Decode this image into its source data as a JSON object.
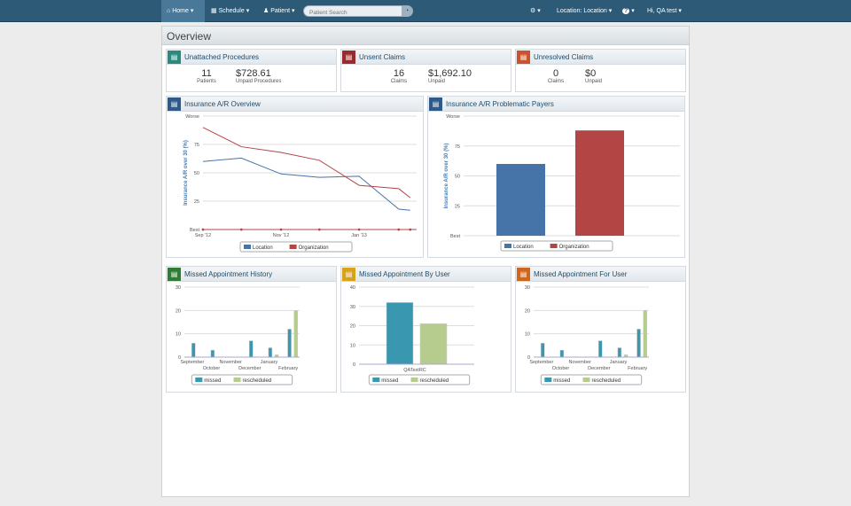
{
  "nav": {
    "home": "Home",
    "schedule": "Schedule",
    "patient": "Patient",
    "search_placeholder": "Patient Search",
    "settings": "⚙",
    "location": "Location: Location",
    "help": "?",
    "user": "Hi,  QA test"
  },
  "page": {
    "title": "Overview"
  },
  "summary": [
    {
      "title": "Unattached Procedures",
      "color": "#2a8a80",
      "stats": [
        {
          "value": "11",
          "label": "Patients"
        },
        {
          "value": "$728.61",
          "label": "Unpaid Procedures"
        }
      ]
    },
    {
      "title": "Unsent Claims",
      "color": "#9b2a2a",
      "stats": [
        {
          "value": "16",
          "label": "Claims"
        },
        {
          "value": "$1,692.10",
          "label": "Unpaid"
        }
      ]
    },
    {
      "title": "Unresolved Claims",
      "color": "#c9532d",
      "stats": [
        {
          "value": "0",
          "label": "Claims"
        },
        {
          "value": "$0",
          "label": "Unpaid"
        }
      ]
    }
  ],
  "colors": {
    "location": "#4673a8",
    "organization": "#b34545",
    "missed": "#3a97b0",
    "rescheduled": "#b5cc8e"
  },
  "chart_data": [
    {
      "type": "line",
      "title": "Insurance A/R Overview",
      "ylabel": "Insurance A/R over 30 (%)",
      "ylim": [
        0,
        100
      ],
      "yticks": [
        "Best",
        "25",
        "50",
        "75",
        "Worse"
      ],
      "x": [
        "2012-09-01",
        "2012-10-01",
        "2012-11-01",
        "2012-12-01",
        "2013-01-01",
        "2013-02-01",
        "2013-02-10"
      ],
      "xticks": [
        {
          "x": "2012-09-01",
          "label": "Sep '12"
        },
        {
          "x": "2012-11-01",
          "label": "Nov '12"
        },
        {
          "x": "2013-01-01",
          "label": "Jan '13"
        }
      ],
      "series": [
        {
          "name": "Location",
          "values": [
            60,
            63,
            49,
            46,
            47,
            18,
            17
          ]
        },
        {
          "name": "Organization",
          "values": [
            90,
            73,
            68,
            61,
            39,
            36,
            28
          ]
        }
      ],
      "legend": "bottom"
    },
    {
      "type": "bar",
      "title": "Insurance A/R Problematic Payers",
      "ylabel": "Insurance A/R over 30 (%)",
      "ylim": [
        0,
        100
      ],
      "yticks": [
        "Best",
        "25",
        "50",
        "75",
        "Worse"
      ],
      "categories": [
        ""
      ],
      "series": [
        {
          "name": "Location",
          "values": [
            60
          ]
        },
        {
          "name": "Organization",
          "values": [
            88
          ]
        }
      ],
      "legend": "bottom"
    },
    {
      "type": "bar",
      "title": "Missed Appointment History",
      "ylim": [
        0,
        30
      ],
      "yticks": [
        "0",
        "10",
        "20",
        "30"
      ],
      "categories": [
        "September",
        "October",
        "November",
        "December",
        "January",
        "February"
      ],
      "series": [
        {
          "name": "missed",
          "values": [
            6,
            3,
            0,
            7,
            4,
            12
          ]
        },
        {
          "name": "rescheduled",
          "values": [
            0,
            0,
            0,
            0,
            1,
            20
          ]
        }
      ],
      "legend": "bottom"
    },
    {
      "type": "bar",
      "title": "Missed Appointment By User",
      "ylim": [
        0,
        40
      ],
      "yticks": [
        "0",
        "10",
        "20",
        "30",
        "40"
      ],
      "categories": [
        "QATestRC"
      ],
      "series": [
        {
          "name": "missed",
          "values": [
            32
          ]
        },
        {
          "name": "rescheduled",
          "values": [
            21
          ]
        }
      ],
      "legend": "bottom"
    },
    {
      "type": "bar",
      "title": "Missed Appointment For User",
      "ylim": [
        0,
        30
      ],
      "yticks": [
        "0",
        "10",
        "20",
        "30"
      ],
      "categories": [
        "September",
        "October",
        "November",
        "December",
        "January",
        "February"
      ],
      "series": [
        {
          "name": "missed",
          "values": [
            6,
            3,
            0,
            7,
            4,
            12
          ]
        },
        {
          "name": "rescheduled",
          "values": [
            0,
            0,
            0,
            0,
            1,
            20
          ]
        }
      ],
      "legend": "bottom"
    }
  ]
}
